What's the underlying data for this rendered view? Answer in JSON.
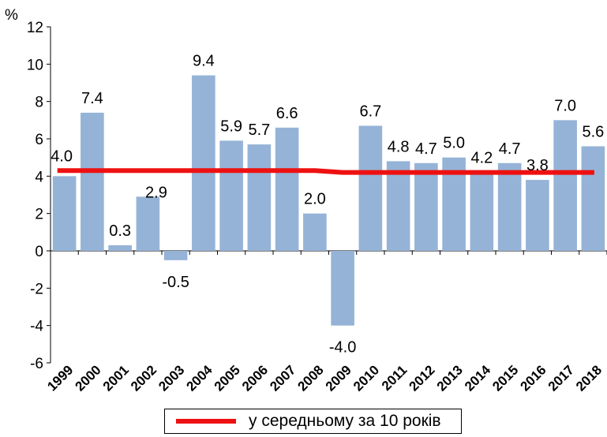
{
  "chart_data": {
    "type": "bar",
    "y_unit_label": "%",
    "categories": [
      "1999",
      "2000",
      "2001",
      "2002",
      "2003",
      "2004",
      "2005",
      "2006",
      "2007",
      "2008",
      "2009",
      "2010",
      "2011",
      "2012",
      "2013",
      "2014",
      "2015",
      "2016",
      "2017",
      "2018"
    ],
    "series": [
      {
        "type": "bar",
        "color": "#95b3d7",
        "values": [
          4.0,
          7.4,
          0.3,
          2.9,
          -0.5,
          9.4,
          5.9,
          5.7,
          6.6,
          2.0,
          -4.0,
          6.7,
          4.8,
          4.7,
          5.0,
          4.2,
          4.7,
          3.8,
          7.0,
          5.6
        ],
        "data_labels": [
          "4.0",
          "7.4",
          "0.3",
          "2.9",
          "-0.5",
          "9.4",
          "5.9",
          "5.7",
          "6.6",
          "2.0",
          "-4.0",
          "6.7",
          "4.8",
          "4.7",
          "5.0",
          "4.2",
          "4.7",
          "3.8",
          "7.0",
          "5.6"
        ]
      },
      {
        "type": "line",
        "name": "у середньому за 10 років",
        "color": "#ee1111",
        "values": [
          4.3,
          4.3,
          4.3,
          4.3,
          4.3,
          4.3,
          4.3,
          4.3,
          4.3,
          4.3,
          4.2,
          4.2,
          4.2,
          4.2,
          4.2,
          4.2,
          4.2,
          4.2,
          4.2,
          4.2
        ]
      }
    ],
    "ylim": [
      -6,
      12
    ],
    "yticks": [
      "12",
      "10",
      "8",
      "6",
      "4",
      "2",
      "0",
      "-2",
      "-4",
      "-6"
    ],
    "grid": false,
    "legend_position": "bottom"
  }
}
